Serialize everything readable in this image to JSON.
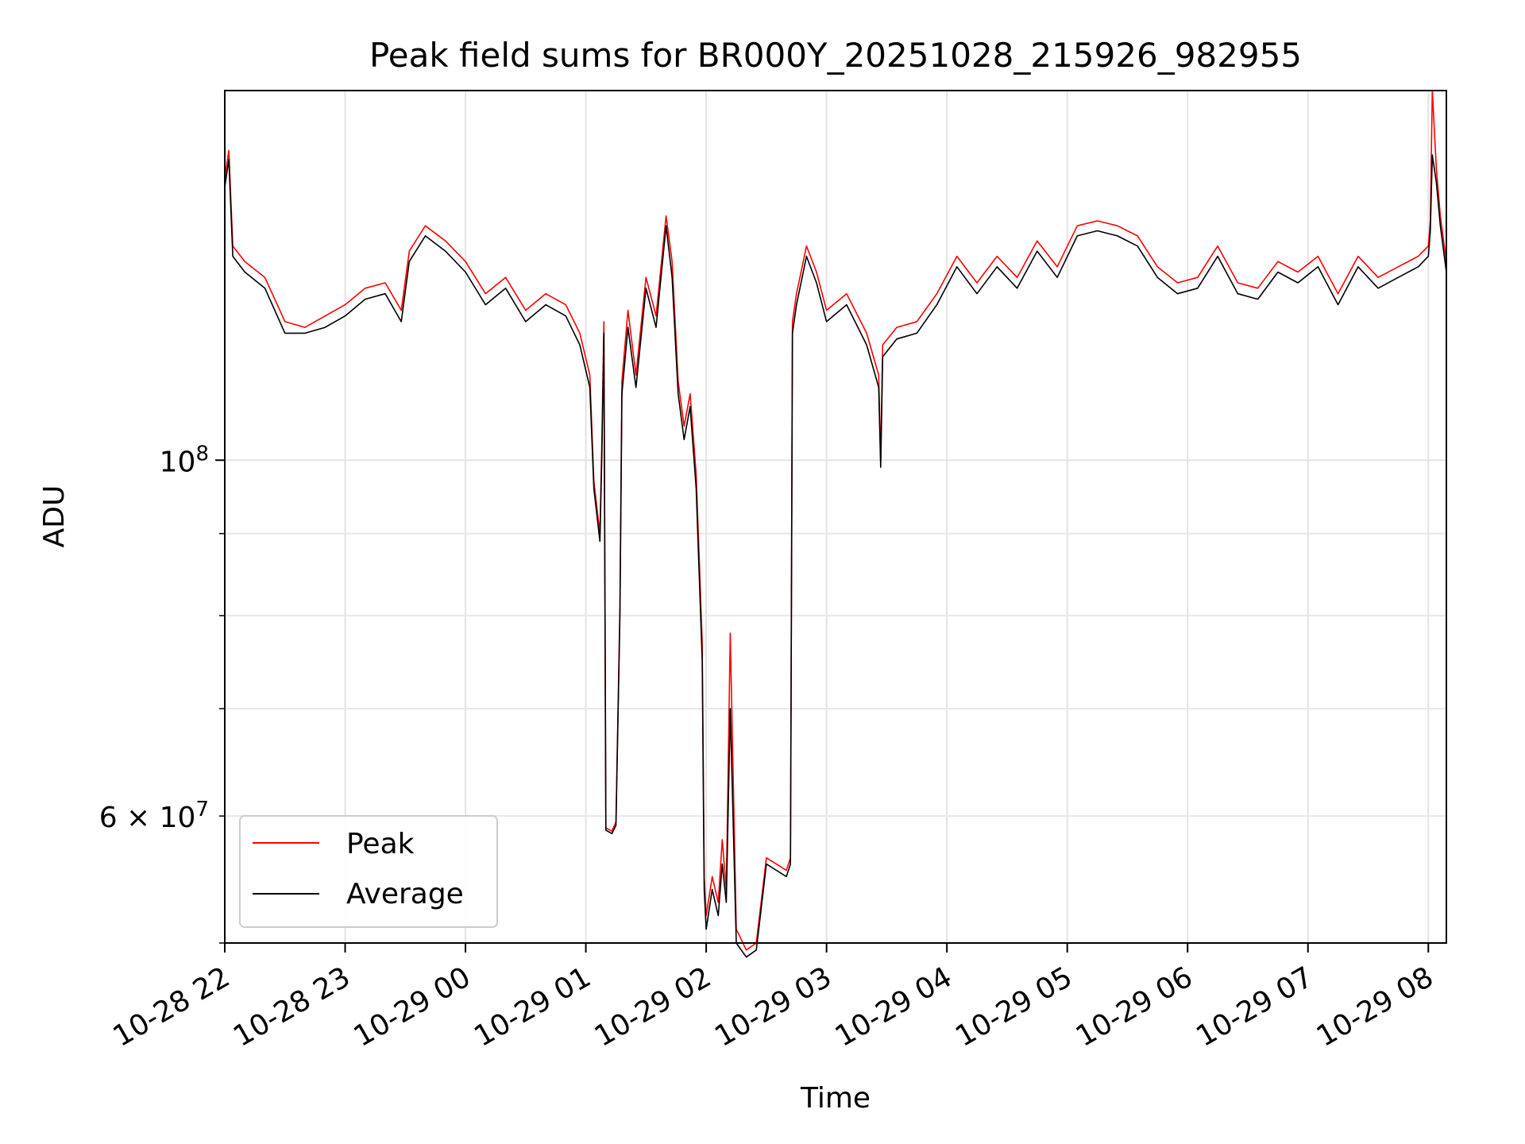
{
  "chart_data": {
    "type": "line",
    "title": "Peak field sums for BR000Y_20251028_215926_982955",
    "xlabel": "Time",
    "ylabel": "ADU",
    "y_scale": "log",
    "ylim": [
      50000000,
      170000000
    ],
    "xlim": [
      "2025-10-28 22:00",
      "2025-10-29 08:09"
    ],
    "grid": true,
    "legend": "lower left",
    "x_tick_labels": [
      "10-28 22",
      "10-28 23",
      "10-29 00",
      "10-29 01",
      "10-29 02",
      "10-29 03",
      "10-29 04",
      "10-29 05",
      "10-29 06",
      "10-29 07",
      "10-29 08"
    ],
    "x_tick_times": [
      "2025-10-28 22:00",
      "2025-10-28 23:00",
      "2025-10-29 00:00",
      "2025-10-29 01:00",
      "2025-10-29 02:00",
      "2025-10-29 03:00",
      "2025-10-29 04:00",
      "2025-10-29 05:00",
      "2025-10-29 06:00",
      "2025-10-29 07:00",
      "2025-10-29 08:00"
    ],
    "y_major_ticks": [
      {
        "value": 100000000,
        "base": "10",
        "exp": "8"
      }
    ],
    "y_minor_ticks": [
      {
        "value": 60000000,
        "mantissa": "6",
        "base": "10",
        "exp": "7",
        "labeled": true
      },
      {
        "value": 50000000,
        "labeled": false
      },
      {
        "value": 70000000,
        "labeled": false
      },
      {
        "value": 80000000,
        "labeled": false
      },
      {
        "value": 90000000,
        "labeled": false
      }
    ],
    "series": [
      {
        "name": "Peak",
        "color": "#ff0000",
        "x": [
          "2025-10-28 22:00",
          "2025-10-28 22:02",
          "2025-10-28 22:04",
          "2025-10-28 22:10",
          "2025-10-28 22:20",
          "2025-10-28 22:30",
          "2025-10-28 22:40",
          "2025-10-28 22:50",
          "2025-10-28 23:00",
          "2025-10-28 23:10",
          "2025-10-28 23:20",
          "2025-10-28 23:28",
          "2025-10-28 23:32",
          "2025-10-28 23:40",
          "2025-10-28 23:50",
          "2025-10-29 00:00",
          "2025-10-29 00:10",
          "2025-10-29 00:20",
          "2025-10-29 00:30",
          "2025-10-29 00:40",
          "2025-10-29 00:50",
          "2025-10-29 00:57",
          "2025-10-29 01:02",
          "2025-10-29 01:04",
          "2025-10-29 01:07",
          "2025-10-29 01:08",
          "2025-10-29 01:09",
          "2025-10-29 01:10",
          "2025-10-29 01:13",
          "2025-10-29 01:15",
          "2025-10-29 01:17",
          "2025-10-29 01:18",
          "2025-10-29 01:21",
          "2025-10-29 01:25",
          "2025-10-29 01:30",
          "2025-10-29 01:35",
          "2025-10-29 01:40",
          "2025-10-29 01:43",
          "2025-10-29 01:46",
          "2025-10-29 01:49",
          "2025-10-29 01:52",
          "2025-10-29 01:55",
          "2025-10-29 01:58",
          "2025-10-29 01:59",
          "2025-10-29 02:00",
          "2025-10-29 02:03",
          "2025-10-29 02:06",
          "2025-10-29 02:08",
          "2025-10-29 02:10",
          "2025-10-29 02:12",
          "2025-10-29 02:15",
          "2025-10-29 02:20",
          "2025-10-29 02:25",
          "2025-10-29 02:30",
          "2025-10-29 02:35",
          "2025-10-29 02:40",
          "2025-10-29 02:42",
          "2025-10-29 02:43",
          "2025-10-29 02:45",
          "2025-10-29 02:50",
          "2025-10-29 02:55",
          "2025-10-29 03:00",
          "2025-10-29 03:10",
          "2025-10-29 03:20",
          "2025-10-29 03:26",
          "2025-10-29 03:27",
          "2025-10-29 03:28",
          "2025-10-29 03:35",
          "2025-10-29 03:45",
          "2025-10-29 03:55",
          "2025-10-29 04:05",
          "2025-10-29 04:15",
          "2025-10-29 04:25",
          "2025-10-29 04:35",
          "2025-10-29 04:45",
          "2025-10-29 04:55",
          "2025-10-29 05:05",
          "2025-10-29 05:15",
          "2025-10-29 05:25",
          "2025-10-29 05:35",
          "2025-10-29 05:45",
          "2025-10-29 05:55",
          "2025-10-29 06:05",
          "2025-10-29 06:15",
          "2025-10-29 06:25",
          "2025-10-29 06:35",
          "2025-10-29 06:45",
          "2025-10-29 06:55",
          "2025-10-29 07:05",
          "2025-10-29 07:15",
          "2025-10-29 07:25",
          "2025-10-29 07:35",
          "2025-10-29 07:45",
          "2025-10-29 07:55",
          "2025-10-29 08:00",
          "2025-10-29 08:01",
          "2025-10-29 08:02",
          "2025-10-29 08:04",
          "2025-10-29 08:06",
          "2025-10-29 08:09"
        ],
        "y": [
          150000000,
          156000000,
          136000000,
          133000000,
          130000000,
          122000000,
          121000000,
          123000000,
          125000000,
          128000000,
          129000000,
          124000000,
          135000000,
          140000000,
          137000000,
          133000000,
          127000000,
          130000000,
          124000000,
          127000000,
          125000000,
          120000000,
          113000000,
          97000000,
          90000000,
          103000000,
          122000000,
          59000000,
          58700000,
          59500000,
          81000000,
          112000000,
          124000000,
          113000000,
          130000000,
          123000000,
          142000000,
          133000000,
          112000000,
          105000000,
          110000000,
          98000000,
          77000000,
          55000000,
          52000000,
          55000000,
          53000000,
          58000000,
          54000000,
          78000000,
          51000000,
          49500000,
          50000000,
          56500000,
          56000000,
          55500000,
          56500000,
          122000000,
          127000000,
          136000000,
          131000000,
          124000000,
          127000000,
          120000000,
          113000000,
          100000000,
          118000000,
          121000000,
          122000000,
          127000000,
          134000000,
          129000000,
          134000000,
          130000000,
          137000000,
          132000000,
          140000000,
          141000000,
          140000000,
          138000000,
          132000000,
          129000000,
          130000000,
          136000000,
          129000000,
          128000000,
          133000000,
          131000000,
          134000000,
          127000000,
          134000000,
          130000000,
          132000000,
          134000000,
          136000000,
          141000000,
          170000000,
          152000000,
          142000000,
          133000000
        ]
      },
      {
        "name": "Average",
        "color": "#000000",
        "x": [
          "2025-10-28 22:00",
          "2025-10-28 22:02",
          "2025-10-28 22:04",
          "2025-10-28 22:10",
          "2025-10-28 22:20",
          "2025-10-28 22:30",
          "2025-10-28 22:40",
          "2025-10-28 22:50",
          "2025-10-28 23:00",
          "2025-10-28 23:10",
          "2025-10-28 23:20",
          "2025-10-28 23:28",
          "2025-10-28 23:32",
          "2025-10-28 23:40",
          "2025-10-28 23:50",
          "2025-10-29 00:00",
          "2025-10-29 00:10",
          "2025-10-29 00:20",
          "2025-10-29 00:30",
          "2025-10-29 00:40",
          "2025-10-29 00:50",
          "2025-10-29 00:57",
          "2025-10-29 01:02",
          "2025-10-29 01:04",
          "2025-10-29 01:07",
          "2025-10-29 01:08",
          "2025-10-29 01:09",
          "2025-10-29 01:10",
          "2025-10-29 01:13",
          "2025-10-29 01:15",
          "2025-10-29 01:17",
          "2025-10-29 01:18",
          "2025-10-29 01:21",
          "2025-10-29 01:25",
          "2025-10-29 01:30",
          "2025-10-29 01:35",
          "2025-10-29 01:40",
          "2025-10-29 01:43",
          "2025-10-29 01:46",
          "2025-10-29 01:49",
          "2025-10-29 01:52",
          "2025-10-29 01:55",
          "2025-10-29 01:58",
          "2025-10-29 01:59",
          "2025-10-29 02:00",
          "2025-10-29 02:03",
          "2025-10-29 02:06",
          "2025-10-29 02:08",
          "2025-10-29 02:10",
          "2025-10-29 02:12",
          "2025-10-29 02:15",
          "2025-10-29 02:20",
          "2025-10-29 02:25",
          "2025-10-29 02:30",
          "2025-10-29 02:35",
          "2025-10-29 02:40",
          "2025-10-29 02:42",
          "2025-10-29 02:43",
          "2025-10-29 02:45",
          "2025-10-29 02:50",
          "2025-10-29 02:55",
          "2025-10-29 03:00",
          "2025-10-29 03:10",
          "2025-10-29 03:20",
          "2025-10-29 03:26",
          "2025-10-29 03:27",
          "2025-10-29 03:28",
          "2025-10-29 03:35",
          "2025-10-29 03:45",
          "2025-10-29 03:55",
          "2025-10-29 04:05",
          "2025-10-29 04:15",
          "2025-10-29 04:25",
          "2025-10-29 04:35",
          "2025-10-29 04:45",
          "2025-10-29 04:55",
          "2025-10-29 05:05",
          "2025-10-29 05:15",
          "2025-10-29 05:25",
          "2025-10-29 05:35",
          "2025-10-29 05:45",
          "2025-10-29 05:55",
          "2025-10-29 06:05",
          "2025-10-29 06:15",
          "2025-10-29 06:25",
          "2025-10-29 06:35",
          "2025-10-29 06:45",
          "2025-10-29 06:55",
          "2025-10-29 07:05",
          "2025-10-29 07:15",
          "2025-10-29 07:25",
          "2025-10-29 07:35",
          "2025-10-29 07:45",
          "2025-10-29 07:55",
          "2025-10-29 08:00",
          "2025-10-29 08:01",
          "2025-10-29 08:02",
          "2025-10-29 08:04",
          "2025-10-29 08:06",
          "2025-10-29 08:09"
        ],
        "y": [
          148000000,
          154000000,
          134000000,
          131000000,
          128000000,
          120000000,
          120000000,
          121000000,
          123000000,
          126000000,
          127000000,
          122000000,
          133000000,
          138000000,
          135000000,
          131000000,
          125000000,
          128000000,
          122000000,
          125000000,
          123000000,
          118000000,
          111000000,
          96000000,
          89000000,
          101000000,
          120000000,
          58800000,
          58500000,
          59200000,
          80000000,
          110000000,
          121000000,
          111000000,
          128000000,
          121000000,
          140000000,
          130000000,
          110000000,
          103000000,
          108000000,
          96000000,
          75000000,
          54000000,
          51000000,
          54000000,
          52000000,
          56000000,
          53000000,
          70000000,
          50000000,
          49000000,
          49500000,
          56000000,
          55500000,
          55000000,
          56000000,
          120000000,
          125000000,
          134000000,
          129000000,
          122000000,
          125000000,
          118000000,
          111000000,
          99000000,
          116000000,
          119000000,
          120000000,
          125000000,
          132000000,
          127000000,
          132000000,
          128000000,
          135000000,
          130000000,
          138000000,
          139000000,
          138000000,
          136000000,
          130000000,
          127000000,
          128000000,
          134000000,
          127000000,
          126000000,
          131000000,
          129000000,
          132000000,
          125000000,
          132000000,
          128000000,
          130000000,
          132000000,
          134000000,
          139000000,
          155000000,
          149000000,
          140000000,
          131000000
        ]
      }
    ]
  }
}
